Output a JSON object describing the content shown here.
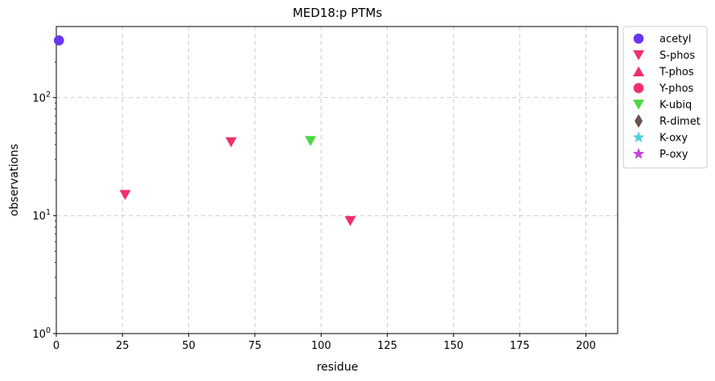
{
  "chart_data": {
    "type": "scatter",
    "title": "MED18:p PTMs",
    "xlabel": "residue",
    "ylabel": "observations",
    "xlim": [
      0,
      212
    ],
    "ylim": [
      1,
      400
    ],
    "yscale": "log",
    "grid": true,
    "legend_placement": "outside-right",
    "x_ticks": [
      "0",
      "25",
      "50",
      "75",
      "100",
      "125",
      "150",
      "175",
      "200"
    ],
    "x_tick_values": [
      0,
      25,
      50,
      75,
      100,
      125,
      150,
      175,
      200
    ],
    "y_ticks": [
      {
        "value": 1,
        "base": "10",
        "exp": "0"
      },
      {
        "value": 10,
        "base": "10",
        "exp": "1"
      },
      {
        "value": 100,
        "base": "10",
        "exp": "2"
      }
    ],
    "series": [
      {
        "name": "acetyl",
        "marker": "circle",
        "color": "#6a35f0",
        "points": [
          {
            "x": 1,
            "y": 305
          }
        ]
      },
      {
        "name": "S-phos",
        "marker": "triangle-down",
        "color": "#f0306a",
        "points": [
          {
            "x": 26,
            "y": 15
          },
          {
            "x": 66,
            "y": 42
          },
          {
            "x": 111,
            "y": 9
          }
        ]
      },
      {
        "name": "T-phos",
        "marker": "triangle-up",
        "color": "#f0306a",
        "points": []
      },
      {
        "name": "Y-phos",
        "marker": "circle",
        "color": "#f0306a",
        "points": []
      },
      {
        "name": "K-ubiq",
        "marker": "triangle-down",
        "color": "#4cd843",
        "points": [
          {
            "x": 96,
            "y": 43
          }
        ]
      },
      {
        "name": "R-dimet",
        "marker": "diamond",
        "color": "#6b5249",
        "points": []
      },
      {
        "name": "K-oxy",
        "marker": "star",
        "color": "#4ccfd6",
        "points": []
      },
      {
        "name": "P-oxy",
        "marker": "star",
        "color": "#c744d9",
        "points": []
      }
    ]
  }
}
